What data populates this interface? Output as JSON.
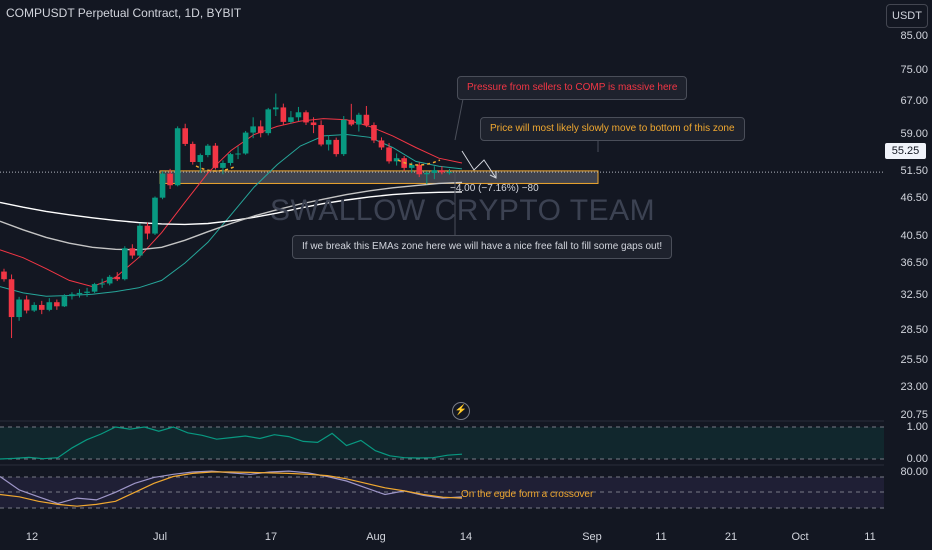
{
  "header": {
    "title": "COMPUSDT Perpetual Contract, 1D, BYBIT",
    "currency": "USDT"
  },
  "price_axis": {
    "ticks": [
      "85.00",
      "75.00",
      "67.00",
      "59.00",
      "51.50",
      "46.50",
      "40.50",
      "36.50",
      "32.50",
      "28.50",
      "25.50",
      "23.00",
      "20.75"
    ],
    "current_price": "55.25"
  },
  "indicator_axis": {
    "upper_ticks": [
      "1.00",
      "0.00"
    ],
    "lower_ticks": [
      "80.00"
    ]
  },
  "date_axis": {
    "ticks": [
      "12",
      "Jul",
      "17",
      "Aug",
      "14",
      "Sep",
      "11",
      "21",
      "Oct",
      "11"
    ]
  },
  "annotations": {
    "sellers": "Pressure from sellers to COMP is massive here",
    "bottom_zone": "Price will most likely slowly move to bottom of this zone",
    "ema_break": "If we break this EMAs zone here we will have a nice free fall to fill some gaps out!",
    "crossover": "On the egde form a crossover",
    "measure": "−4.00 (−7.16%) −80",
    "watermark": "SWALLOW CRYPTO TEAM"
  },
  "colors": {
    "background": "#131722",
    "up": "#089981",
    "down": "#f23645",
    "zone_border": "#f0a830",
    "ema_green": "#26a69a",
    "ema_red": "#f23645",
    "ema_white": "#ffffff",
    "ema_grey": "#c4c4c4",
    "stoch_k": "#9e96c8",
    "stoch_d": "#f0a830"
  },
  "chart_data": [
    {
      "type": "candlestick",
      "title": "COMPUSDT Perpetual Contract, 1D, BYBIT",
      "scale": "log",
      "ylim": [
        20.5,
        88
      ],
      "grid": false,
      "current_price": 55.25,
      "candles": [
        [
          32.5,
          33.0,
          30.8,
          31.2
        ],
        [
          31.2,
          32.0,
          22.8,
          25.5
        ],
        [
          25.5,
          28.4,
          25.0,
          28.0
        ],
        [
          28.0,
          28.6,
          26.0,
          26.4
        ],
        [
          26.4,
          27.6,
          26.2,
          27.2
        ],
        [
          27.2,
          27.8,
          25.9,
          26.5
        ],
        [
          26.5,
          28.2,
          26.3,
          27.6
        ],
        [
          27.6,
          28.0,
          26.5,
          27.0
        ],
        [
          27.0,
          28.8,
          26.9,
          28.5
        ],
        [
          28.5,
          29.1,
          28.0,
          28.8
        ],
        [
          28.8,
          29.6,
          28.3,
          29.0
        ],
        [
          29.0,
          29.8,
          28.4,
          29.2
        ],
        [
          29.2,
          30.6,
          29.0,
          30.4
        ],
        [
          30.4,
          31.3,
          29.8,
          30.5
        ],
        [
          30.5,
          31.9,
          30.2,
          31.6
        ],
        [
          31.6,
          32.4,
          30.9,
          31.2
        ],
        [
          31.2,
          37.2,
          31.0,
          36.8
        ],
        [
          36.8,
          37.6,
          34.8,
          35.4
        ],
        [
          35.4,
          42.0,
          35.0,
          41.5
        ],
        [
          41.5,
          42.2,
          38.6,
          39.8
        ],
        [
          39.8,
          48.5,
          39.5,
          48.2
        ],
        [
          48.2,
          55.5,
          47.8,
          54.8
        ],
        [
          54.8,
          56.2,
          50.5,
          51.5
        ],
        [
          51.5,
          70.5,
          51.2,
          69.8
        ],
        [
          69.8,
          71.5,
          63.5,
          64.2
        ],
        [
          64.2,
          65.0,
          57.5,
          58.3
        ],
        [
          58.3,
          61.0,
          55.0,
          60.5
        ],
        [
          60.5,
          64.2,
          59.8,
          63.6
        ],
        [
          63.6,
          64.5,
          56.0,
          56.5
        ],
        [
          56.5,
          58.8,
          54.6,
          58.0
        ],
        [
          58.0,
          61.2,
          57.2,
          60.8
        ],
        [
          60.8,
          63.4,
          59.2,
          61.0
        ],
        [
          61.0,
          68.8,
          60.6,
          68.2
        ],
        [
          68.2,
          74.0,
          66.2,
          70.5
        ],
        [
          70.5,
          72.8,
          66.5,
          68.0
        ],
        [
          68.0,
          77.8,
          67.2,
          77.2
        ],
        [
          77.2,
          84.0,
          74.5,
          78.0
        ],
        [
          78.0,
          79.6,
          71.0,
          72.2
        ],
        [
          72.2,
          76.5,
          71.5,
          74.0
        ],
        [
          74.0,
          78.2,
          72.5,
          76.0
        ],
        [
          76.0,
          76.8,
          71.0,
          72.0
        ],
        [
          72.0,
          74.0,
          68.0,
          71.0
        ],
        [
          71.0,
          72.8,
          63.4,
          64.0
        ],
        [
          64.0,
          67.3,
          62.0,
          65.6
        ],
        [
          65.6,
          66.4,
          60.0,
          60.8
        ],
        [
          60.8,
          74.5,
          60.2,
          73.0
        ],
        [
          73.0,
          79.5,
          70.6,
          71.2
        ],
        [
          71.2,
          75.8,
          68.6,
          75.0
        ],
        [
          75.0,
          78.6,
          70.2,
          71.0
        ],
        [
          71.0,
          72.0,
          64.5,
          65.4
        ],
        [
          65.4,
          66.5,
          62.2,
          63.0
        ],
        [
          63.0,
          64.5,
          57.8,
          58.5
        ],
        [
          58.5,
          61.0,
          57.2,
          59.5
        ],
        [
          59.5,
          60.2,
          55.6,
          56.5
        ],
        [
          56.5,
          58.2,
          55.0,
          57.4
        ],
        [
          57.4,
          58.2,
          53.8,
          54.6
        ],
        [
          54.6,
          55.5,
          51.8,
          55.0
        ],
        [
          55.0,
          57.0,
          53.2,
          55.8
        ],
        [
          55.8,
          57.0,
          54.6,
          55.2
        ],
        [
          55.2,
          56.2,
          54.5,
          55.25
        ]
      ],
      "emas": [
        {
          "color": "#26a69a",
          "values": [
            30.0,
            29.0,
            28.5,
            28.6,
            28.8,
            29.2,
            29.8,
            31.0,
            34.0,
            38.0,
            44.0,
            51.0,
            57.5,
            63.5,
            67.0,
            67.5,
            66.5,
            63.0,
            58.5,
            57.0,
            56.2
          ]
        },
        {
          "color": "#f23645",
          "values": [
            36.5,
            35.0,
            33.0,
            31.0,
            30.0,
            31.5,
            35.0,
            40.0,
            47.0,
            55.0,
            62.0,
            67.5,
            70.5,
            72.5,
            73.5,
            73.0,
            70.5,
            67.0,
            63.0,
            59.5,
            58.0
          ]
        },
        {
          "color": "#ffffff",
          "values": [
            47.0,
            45.8,
            44.8,
            44.0,
            43.3,
            42.7,
            42.2,
            41.9,
            41.8,
            42.0,
            42.6,
            43.4,
            44.4,
            45.6,
            46.7,
            47.6,
            48.4,
            49.0,
            49.4,
            49.6,
            49.7
          ]
        },
        {
          "color": "#c4c4c4",
          "values": [
            42.5,
            40.6,
            39.0,
            37.8,
            37.0,
            36.6,
            36.5,
            37.0,
            38.4,
            40.2,
            42.0,
            43.7,
            45.2,
            46.6,
            47.8,
            49.0,
            50.0,
            50.8,
            51.4,
            52.0,
            52.3
          ]
        }
      ],
      "zone": {
        "from": 52.0,
        "to": 55.6
      }
    },
    {
      "type": "area",
      "ylim": [
        0,
        1
      ],
      "ticks": [
        1.0,
        0.0
      ],
      "values": [
        0.0,
        0.02,
        0.05,
        0.01,
        0.04,
        0.35,
        0.6,
        0.78,
        1.0,
        0.93,
        1.0,
        0.87,
        1.0,
        0.82,
        0.74,
        0.62,
        0.67,
        0.72,
        0.64,
        0.76,
        0.7,
        0.55,
        0.52,
        0.8,
        0.42,
        0.58,
        0.26,
        0.1,
        0.04,
        0.03,
        0.04,
        0.12,
        0.15
      ]
    },
    {
      "type": "line",
      "ticks": [
        80.0
      ],
      "series": [
        {
          "values": [
            70,
            40,
            25,
            10,
            22,
            18,
            35,
            55,
            68,
            75,
            80,
            82,
            78,
            75,
            80,
            82,
            78,
            70,
            60,
            45,
            30,
            38,
            28,
            22,
            25
          ]
        },
        {
          "values": [
            30,
            25,
            15,
            8,
            4,
            8,
            15,
            35,
            55,
            70,
            77,
            80,
            80,
            79,
            78,
            77,
            75,
            72,
            65,
            55,
            45,
            38,
            30,
            24,
            22
          ]
        }
      ]
    }
  ]
}
